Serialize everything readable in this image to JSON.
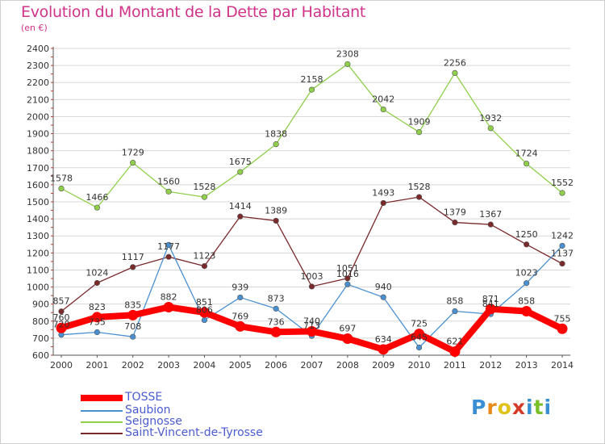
{
  "title": "Evolution du Montant de la Dette par Habitant",
  "subtitle": "(en €)",
  "logo": "Proxiti",
  "chart_data": {
    "type": "line",
    "x": [
      "2000",
      "2001",
      "2002",
      "2003",
      "2004",
      "2005",
      "2006",
      "2007",
      "2008",
      "2009",
      "2010",
      "2011",
      "2012",
      "2013",
      "2014"
    ],
    "ylim": [
      600,
      2400
    ],
    "yticks": [
      600,
      700,
      800,
      900,
      1000,
      1100,
      1200,
      1300,
      1400,
      1500,
      1600,
      1700,
      1800,
      1900,
      2000,
      2100,
      2200,
      2300,
      2400
    ],
    "grid": "horizontal",
    "legend_position": "bottom-left",
    "series": [
      {
        "name": "TOSSE",
        "color": "#ff0000",
        "values": [
          760,
          823,
          835,
          882,
          851,
          769,
          736,
          740,
          697,
          634,
          725,
          621,
          871,
          858,
          755
        ]
      },
      {
        "name": "Saubion",
        "color": "#4a90d0",
        "values": [
          720,
          735,
          708,
          1247,
          806,
          939,
          873,
          713,
          1016,
          940,
          645,
          858,
          841,
          1023,
          1242
        ]
      },
      {
        "name": "Seignosse",
        "color": "#8fcf4a",
        "values": [
          1578,
          1466,
          1729,
          1560,
          1528,
          1675,
          1838,
          2158,
          2308,
          2042,
          1909,
          2256,
          1932,
          1724,
          1552
        ]
      },
      {
        "name": "Saint-Vincent-de-Tyrosse",
        "color": "#7a2a2a",
        "values": [
          857,
          1024,
          1117,
          1177,
          1123,
          1414,
          1389,
          1003,
          1051,
          1493,
          1528,
          1379,
          1367,
          1250,
          1137
        ]
      }
    ],
    "labels": {
      "TOSSE": [
        "760",
        "823",
        "835",
        "882",
        "851",
        "769",
        "736",
        "740",
        "697",
        "634",
        "725",
        "621",
        "871",
        "858",
        "755"
      ],
      "Saubion": [
        "720",
        "735",
        "708",
        "",
        "806",
        "939",
        "873",
        "713",
        "1016",
        "940",
        "645",
        "858",
        "841",
        "1023",
        "1242"
      ],
      "Seignosse": [
        "1578",
        "1466",
        "1729",
        "1560",
        "1528",
        "1675",
        "1838",
        "2158",
        "2308",
        "2042",
        "1909",
        "2256",
        "1932",
        "1724",
        "1552"
      ],
      "Saint-Vincent-de-Tyrosse": [
        "857",
        "1024",
        "1117",
        "1177",
        "1123",
        "1414",
        "1389",
        "1003",
        "1051",
        "1493",
        "1528",
        "1379",
        "1367",
        "1250",
        "1137"
      ]
    }
  }
}
